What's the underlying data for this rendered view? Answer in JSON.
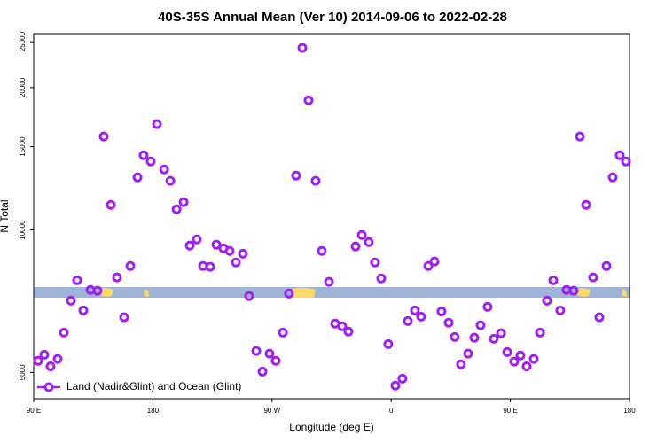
{
  "chart_data": {
    "type": "scatter",
    "title": "40S-35S Annual Mean (Ver 10)   2014-09-06 to 2022-02-28",
    "xlabel": "Longitude (deg E)",
    "ylabel": "N Total",
    "xlim": [
      90,
      540
    ],
    "ylim": [
      4400,
      26000
    ],
    "ylog": true,
    "grid": false,
    "legend": "lower left",
    "xticks": [
      {
        "value": 90,
        "label": "90 E"
      },
      180,
      {
        "value": 270,
        "label": "90 W"
      },
      {
        "value": 360,
        "label": "0"
      },
      {
        "value": 450,
        "label": "90 E"
      },
      {
        "value": 540,
        "label": "180"
      }
    ],
    "yticks": [
      5000,
      10000,
      15000,
      20000,
      25000
    ],
    "series": [
      {
        "name": "Land (Nadir&Glint) and Ocean (Glint)",
        "color": "#a020f0",
        "x": [
          93.3,
          98.0,
          102.7,
          108.1,
          112.8,
          118.1,
          122.8,
          127.5,
          132.9,
          138.2,
          142.9,
          148.3,
          152.9,
          158.3,
          163.0,
          168.4,
          173.0,
          178.4,
          183.1,
          188.5,
          193.2,
          197.9,
          203.2,
          207.9,
          213.2,
          217.9,
          223.3,
          228.0,
          233.3,
          238.0,
          242.7,
          248.0,
          252.7,
          258.1,
          262.8,
          268.1,
          272.8,
          278.2,
          282.8,
          288.2,
          292.9,
          297.6,
          302.9,
          307.6,
          313.0,
          317.7,
          323.0,
          327.7,
          333.1,
          337.8,
          343.1,
          347.8,
          352.5,
          357.8,
          363.2,
          368.5,
          372.6,
          377.9,
          382.6,
          388.0,
          392.7,
          398.0,
          403.4,
          408.0,
          412.7,
          418.1,
          422.8,
          427.5,
          432.8,
          437.5,
          442.9,
          447.6,
          452.9,
          457.6,
          462.3,
          467.7,
          472.4,
          477.7,
          482.4,
          487.7,
          492.4,
          497.8,
          502.5,
          507.2,
          512.5,
          517.2,
          522.6,
          527.3,
          532.6,
          537.3
        ],
        "values": [
          5290,
          5450,
          5150,
          5340,
          6070,
          7090,
          7830,
          6760,
          7470,
          7440,
          15760,
          11300,
          7940,
          6540,
          8390,
          12920,
          14390,
          13960,
          16740,
          13430,
          12700,
          11060,
          11450,
          9270,
          9550,
          8390,
          8360,
          9310,
          9150,
          9030,
          8540,
          8910,
          7250,
          5550,
          5020,
          5480,
          5290,
          6070,
          7340,
          13030,
          24260,
          18800,
          12700,
          9030,
          7770,
          6340,
          6260,
          6100,
          9230,
          9760,
          9430,
          8540,
          7900,
          5740,
          4690,
          4850,
          6420,
          6760,
          6560,
          8390,
          8580,
          6730,
          6370,
          5940,
          5200,
          5480,
          5920,
          6290,
          6880,
          5890,
          6050,
          5520,
          5270,
          5430,
          5150,
          5340,
          6070,
          7090,
          7830,
          6760,
          7470,
          7440,
          15760,
          11300,
          7940,
          6540,
          8390,
          12920,
          14390,
          13960
        ]
      }
    ]
  }
}
